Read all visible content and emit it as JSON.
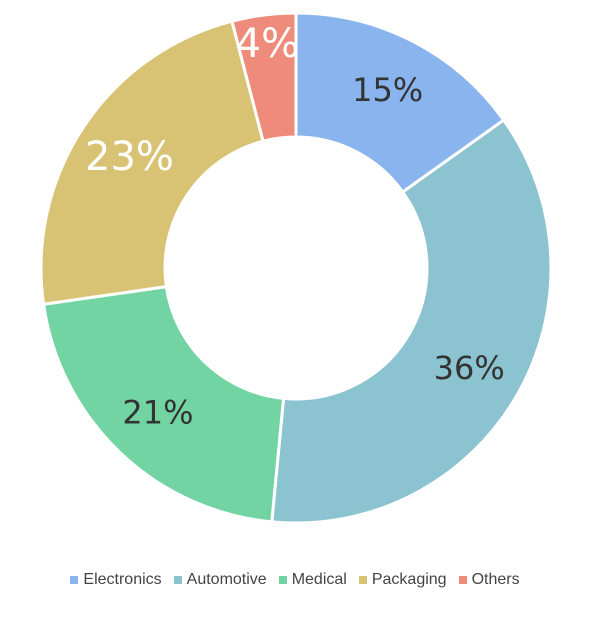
{
  "chart_data": {
    "type": "pie",
    "variant": "donut",
    "categories": [
      "Electronics",
      "Automotive",
      "Medical",
      "Packaging",
      "Others"
    ],
    "values": [
      15,
      36,
      21,
      23,
      4
    ],
    "labels": [
      "15%",
      "36%",
      "21%",
      "23%",
      "4%"
    ],
    "colors": [
      "#8AB4EE",
      "#8BC3D1",
      "#72D3A3",
      "#D8C274",
      "#EE8B7A"
    ],
    "label_colors": [
      "#333333",
      "#333333",
      "#333333",
      "#ffffff",
      "#ffffff"
    ],
    "legend_position": "bottom"
  }
}
